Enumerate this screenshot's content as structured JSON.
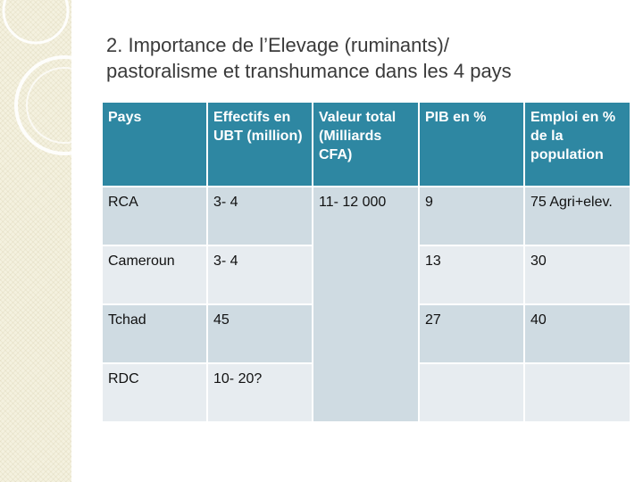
{
  "slide": {
    "title_line1": "2. Importance de l’Elevage (ruminants)/",
    "title_line2": "pastoralisme et transhumance dans les 4 pays"
  },
  "table": {
    "headers": [
      "Pays",
      "Effectifs en UBT (million)",
      "Valeur total (Milliards CFA)",
      "PIB en %",
      "Emploi en % de la population"
    ],
    "rows": [
      {
        "pays": "RCA",
        "effectifs": "3- 4",
        "pib": "9",
        "emploi": "75 Agri+elev."
      },
      {
        "pays": "Cameroun",
        "effectifs": "3- 4",
        "pib": "13",
        "emploi": "30"
      },
      {
        "pays": "Tchad",
        "effectifs": "45",
        "pib": "27",
        "emploi": "40"
      },
      {
        "pays": "RDC",
        "effectifs": "10- 20?",
        "pib": "",
        "emploi": ""
      }
    ],
    "valeur_total_merged": "11- 12 000"
  },
  "colors": {
    "header_bg": "#2e87a2",
    "row_dark": "#cfdbe2",
    "row_light": "#e7ecf0",
    "side_band": "#f4f1df"
  }
}
